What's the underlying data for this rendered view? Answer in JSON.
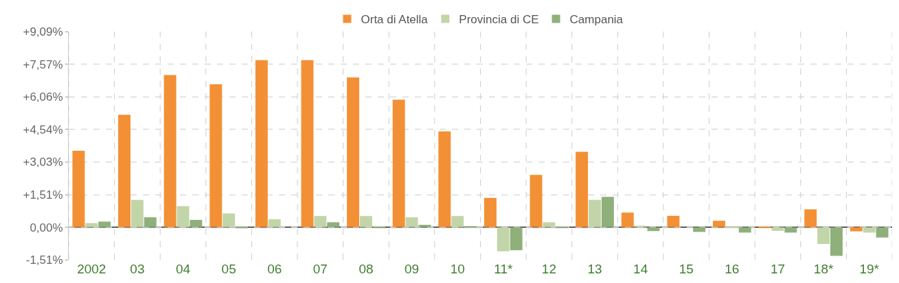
{
  "chart_data": {
    "type": "bar",
    "categories": [
      "2002",
      "03",
      "04",
      "05",
      "06",
      "07",
      "08",
      "09",
      "10",
      "11*",
      "12",
      "13",
      "14",
      "15",
      "16",
      "17",
      "18*",
      "19*"
    ],
    "series": [
      {
        "name": "Orta di Atella",
        "color": "#f39035",
        "values": [
          3.55,
          5.22,
          7.07,
          6.64,
          7.76,
          7.76,
          6.96,
          5.92,
          4.45,
          1.36,
          2.43,
          3.5,
          0.68,
          0.53,
          0.3,
          -0.03,
          0.83,
          -0.19
        ]
      },
      {
        "name": "Provincia di CE",
        "color": "#c2d5a8",
        "values": [
          0.19,
          1.27,
          0.98,
          0.64,
          0.37,
          0.52,
          0.52,
          0.46,
          0.52,
          -1.12,
          0.23,
          1.27,
          0.07,
          0.0,
          -0.02,
          -0.17,
          -0.78,
          -0.25
        ]
      },
      {
        "name": "Campania",
        "color": "#8fb07a",
        "values": [
          0.26,
          0.46,
          0.34,
          -0.05,
          0.0,
          0.23,
          -0.03,
          0.11,
          0.05,
          -1.07,
          -0.03,
          1.41,
          -0.18,
          -0.22,
          -0.25,
          -0.25,
          -1.33,
          -0.48
        ]
      }
    ],
    "ylim": [
      -1.51,
      9.09
    ],
    "yticks": [
      {
        "value": -1.51,
        "label": "-1,51%"
      },
      {
        "value": 0,
        "label": "0,00%"
      },
      {
        "value": 1.51,
        "label": "+1,51%"
      },
      {
        "value": 3.03,
        "label": "+3,03%"
      },
      {
        "value": 4.54,
        "label": "+4,54%"
      },
      {
        "value": 6.06,
        "label": "+6,06%"
      },
      {
        "value": 7.57,
        "label": "+7,57%"
      },
      {
        "value": 9.09,
        "label": "+9,09%"
      }
    ],
    "ref_lines": [
      {
        "axis": "y",
        "value": 0,
        "color": "#222222"
      }
    ],
    "grid": true,
    "legend": "top"
  }
}
